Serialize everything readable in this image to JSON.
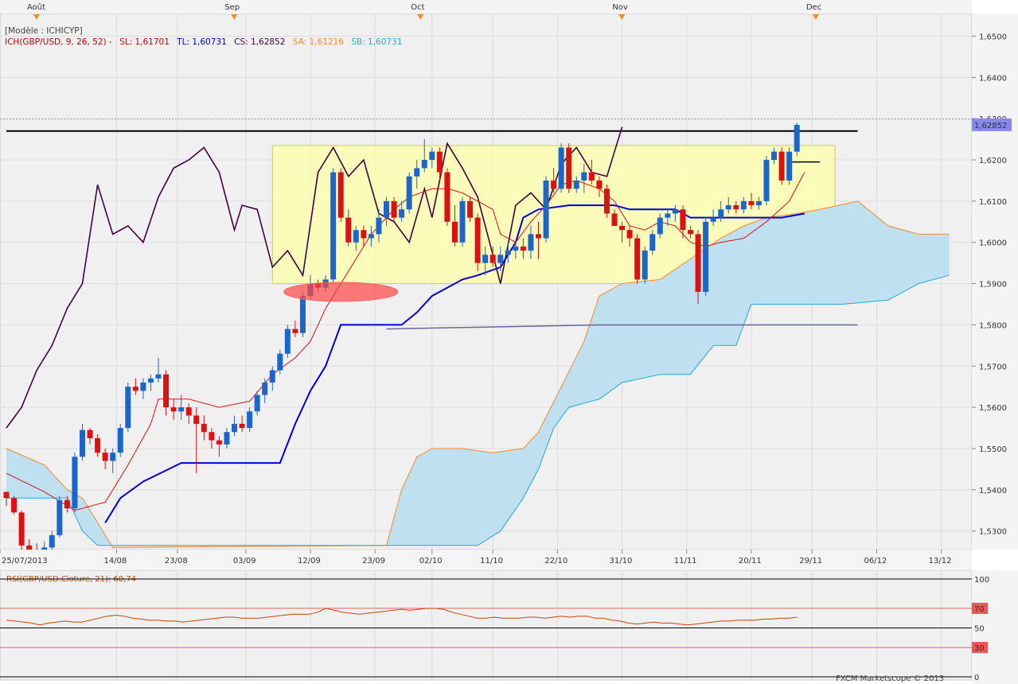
{
  "header": {
    "model_label": "[Modèle : ICHICYP]",
    "ich_label": "ICH(GBP/USD, 9, 26, 52) -",
    "sl": "SL: 1,61701",
    "tl": "TL: 1,60731",
    "cs": "CS: 1,62852",
    "sa": "SA: 1,61216",
    "sb": "SB: 1,60731"
  },
  "months": [
    "Août",
    "Sep",
    "Oct",
    "Nov",
    "Dec"
  ],
  "x_dates": [
    "25/07/2013",
    "14/08",
    "23/08",
    "03/09",
    "12/09",
    "23/09",
    "02/10",
    "11/10",
    "22/10",
    "31/10",
    "11/11",
    "20/11",
    "29/11",
    "06/12",
    "13/12"
  ],
  "price_axis": [
    "1,6500",
    "1,6400",
    "1,6300",
    "1,6200",
    "1,6100",
    "1,6000",
    "1,5900",
    "1,5800",
    "1,5700",
    "1,5600",
    "1,5500",
    "1,5400",
    "1,5300"
  ],
  "current_price": "1,62852",
  "rsi": {
    "label": "RSI(GBP/USD.Cloture, 21): 60,74",
    "levels": [
      "100",
      "70",
      "50",
      "30",
      "0"
    ]
  },
  "footer": "FXCM Marketscope © 2013",
  "colors": {
    "up": "#1a66cc",
    "down": "#dd1111",
    "tenkan": "#dd1111",
    "kijun": "#0000dd",
    "chikou": "#440044",
    "senkou_a": "#ff8822",
    "senkou_b": "#22aadd",
    "cloud_bull": "#bfe0f0",
    "cloud_bear": "#f8dcc0"
  },
  "chart_data": {
    "type": "candlestick",
    "instrument": "GBP/USD",
    "ylim": [
      1.5255,
      1.6555
    ],
    "candles": [
      [
        1.5395,
        1.5395,
        1.536,
        1.538
      ],
      [
        1.538,
        1.5385,
        1.534,
        1.5345
      ],
      [
        1.5345,
        1.535,
        1.5255,
        1.5265
      ],
      [
        1.5265,
        1.528,
        1.524,
        1.5255
      ],
      [
        1.5255,
        1.527,
        1.5235,
        1.525
      ],
      [
        1.525,
        1.5275,
        1.5235,
        1.526
      ],
      [
        1.526,
        1.53,
        1.5255,
        1.529
      ],
      [
        1.529,
        1.5385,
        1.5285,
        1.5375
      ],
      [
        1.5375,
        1.5385,
        1.5345,
        1.5355
      ],
      [
        1.5355,
        1.549,
        1.5345,
        1.548
      ],
      [
        1.548,
        1.556,
        1.547,
        1.5545
      ],
      [
        1.5545,
        1.555,
        1.551,
        1.5525
      ],
      [
        1.5525,
        1.5535,
        1.548,
        1.549
      ],
      [
        1.549,
        1.55,
        1.545,
        1.547
      ],
      [
        1.547,
        1.55,
        1.544,
        1.549
      ],
      [
        1.549,
        1.556,
        1.548,
        1.555
      ],
      [
        1.555,
        1.566,
        1.554,
        1.565
      ],
      [
        1.565,
        1.567,
        1.563,
        1.564
      ],
      [
        1.564,
        1.567,
        1.562,
        1.566
      ],
      [
        1.566,
        1.568,
        1.564,
        1.567
      ],
      [
        1.567,
        1.572,
        1.566,
        1.568
      ],
      [
        1.568,
        1.569,
        1.558,
        1.56
      ],
      [
        1.56,
        1.562,
        1.557,
        1.559
      ],
      [
        1.559,
        1.563,
        1.557,
        1.56
      ],
      [
        1.56,
        1.561,
        1.556,
        1.558
      ],
      [
        1.558,
        1.56,
        1.544,
        1.556
      ],
      [
        1.556,
        1.558,
        1.552,
        1.554
      ],
      [
        1.554,
        1.555,
        1.55,
        1.552
      ],
      [
        1.552,
        1.553,
        1.548,
        1.551
      ],
      [
        1.551,
        1.555,
        1.55,
        1.554
      ],
      [
        1.554,
        1.558,
        1.553,
        1.556
      ],
      [
        1.556,
        1.558,
        1.554,
        1.555
      ],
      [
        1.555,
        1.56,
        1.554,
        1.559
      ],
      [
        1.559,
        1.564,
        1.558,
        1.563
      ],
      [
        1.563,
        1.567,
        1.561,
        1.566
      ],
      [
        1.566,
        1.57,
        1.564,
        1.569
      ],
      [
        1.569,
        1.574,
        1.568,
        1.573
      ],
      [
        1.573,
        1.58,
        1.572,
        1.579
      ],
      [
        1.579,
        1.581,
        1.577,
        1.578
      ],
      [
        1.578,
        1.588,
        1.577,
        1.587
      ],
      [
        1.587,
        1.592,
        1.586,
        1.59
      ],
      [
        1.59,
        1.591,
        1.588,
        1.589
      ],
      [
        1.589,
        1.592,
        1.588,
        1.591
      ],
      [
        1.591,
        1.618,
        1.59,
        1.617
      ],
      [
        1.617,
        1.618,
        1.605,
        1.606
      ],
      [
        1.606,
        1.608,
        1.599,
        1.6
      ],
      [
        1.6,
        1.604,
        1.598,
        1.603
      ],
      [
        1.603,
        1.604,
        1.599,
        1.601
      ],
      [
        1.601,
        1.604,
        1.599,
        1.602
      ],
      [
        1.602,
        1.608,
        1.6,
        1.606
      ],
      [
        1.606,
        1.611,
        1.604,
        1.61
      ],
      [
        1.61,
        1.611,
        1.605,
        1.606
      ],
      [
        1.606,
        1.61,
        1.605,
        1.608
      ],
      [
        1.608,
        1.617,
        1.607,
        1.616
      ],
      [
        1.616,
        1.62,
        1.613,
        1.618
      ],
      [
        1.618,
        1.625,
        1.617,
        1.62
      ],
      [
        1.62,
        1.623,
        1.618,
        1.622
      ],
      [
        1.622,
        1.623,
        1.615,
        1.617
      ],
      [
        1.617,
        1.618,
        1.604,
        1.605
      ],
      [
        1.605,
        1.609,
        1.599,
        1.6
      ],
      [
        1.6,
        1.611,
        1.599,
        1.61
      ],
      [
        1.61,
        1.611,
        1.605,
        1.606
      ],
      [
        1.606,
        1.607,
        1.593,
        1.595
      ],
      [
        1.595,
        1.599,
        1.592,
        1.597
      ],
      [
        1.597,
        1.599,
        1.594,
        1.595
      ],
      [
        1.595,
        1.599,
        1.593,
        1.597
      ],
      [
        1.597,
        1.6,
        1.595,
        1.598
      ],
      [
        1.598,
        1.6,
        1.596,
        1.599
      ],
      [
        1.599,
        1.601,
        1.596,
        1.598
      ],
      [
        1.598,
        1.604,
        1.596,
        1.602
      ],
      [
        1.602,
        1.605,
        1.596,
        1.601
      ],
      [
        1.601,
        1.616,
        1.6,
        1.615
      ],
      [
        1.615,
        1.618,
        1.612,
        1.613
      ],
      [
        1.613,
        1.624,
        1.612,
        1.623
      ],
      [
        1.623,
        1.624,
        1.612,
        1.613
      ],
      [
        1.613,
        1.616,
        1.612,
        1.615
      ],
      [
        1.615,
        1.619,
        1.612,
        1.617
      ],
      [
        1.617,
        1.62,
        1.614,
        1.615
      ],
      [
        1.615,
        1.616,
        1.611,
        1.613
      ],
      [
        1.613,
        1.614,
        1.606,
        1.607
      ],
      [
        1.607,
        1.608,
        1.604,
        1.604
      ],
      [
        1.604,
        1.605,
        1.6,
        1.603
      ],
      [
        1.603,
        1.604,
        1.599,
        1.601
      ],
      [
        1.601,
        1.602,
        1.59,
        1.591
      ],
      [
        1.591,
        1.599,
        1.59,
        1.598
      ],
      [
        1.598,
        1.603,
        1.597,
        1.602
      ],
      [
        1.602,
        1.607,
        1.601,
        1.606
      ],
      [
        1.606,
        1.608,
        1.604,
        1.607
      ],
      [
        1.607,
        1.609,
        1.605,
        1.608
      ],
      [
        1.608,
        1.609,
        1.601,
        1.603
      ],
      [
        1.603,
        1.604,
        1.601,
        1.602
      ],
      [
        1.602,
        1.603,
        1.585,
        1.588
      ],
      [
        1.588,
        1.606,
        1.587,
        1.605
      ],
      [
        1.605,
        1.608,
        1.604,
        1.606
      ],
      [
        1.606,
        1.61,
        1.605,
        1.608
      ],
      [
        1.608,
        1.611,
        1.607,
        1.609
      ],
      [
        1.609,
        1.61,
        1.607,
        1.608
      ],
      [
        1.608,
        1.611,
        1.607,
        1.61
      ],
      [
        1.61,
        1.612,
        1.608,
        1.609
      ],
      [
        1.609,
        1.611,
        1.608,
        1.61
      ],
      [
        1.61,
        1.621,
        1.609,
        1.62
      ],
      [
        1.62,
        1.623,
        1.619,
        1.622
      ],
      [
        1.622,
        1.623,
        1.614,
        1.615
      ],
      [
        1.615,
        1.623,
        1.614,
        1.622
      ],
      [
        1.622,
        1.629,
        1.621,
        1.6285
      ]
    ],
    "tenkan": [
      [
        0,
        1.544
      ],
      [
        5,
        1.5395
      ],
      [
        9,
        1.535
      ],
      [
        13,
        1.537
      ],
      [
        16,
        1.546
      ],
      [
        19,
        1.556
      ],
      [
        20,
        1.562
      ],
      [
        24,
        1.562
      ],
      [
        28,
        1.56
      ],
      [
        32,
        1.5615
      ],
      [
        35,
        1.568
      ],
      [
        38,
        1.572
      ],
      [
        40,
        1.576
      ],
      [
        42,
        1.584
      ],
      [
        44,
        1.59
      ],
      [
        46,
        1.596
      ],
      [
        48,
        1.602
      ],
      [
        51,
        1.608
      ],
      [
        53,
        1.611
      ],
      [
        56,
        1.613
      ],
      [
        58,
        1.613
      ],
      [
        60,
        1.612
      ],
      [
        62,
        1.61
      ],
      [
        64,
        1.608
      ],
      [
        65,
        1.602
      ],
      [
        67,
        1.6
      ],
      [
        69,
        1.605
      ],
      [
        71,
        1.609
      ],
      [
        73,
        1.614
      ],
      [
        75,
        1.615
      ],
      [
        78,
        1.613
      ],
      [
        80,
        1.61
      ],
      [
        82,
        1.604
      ],
      [
        84,
        1.603
      ],
      [
        86,
        1.605
      ],
      [
        88,
        1.604
      ],
      [
        90,
        1.6
      ],
      [
        92,
        1.599
      ],
      [
        94,
        1.6
      ],
      [
        97,
        1.601
      ],
      [
        100,
        1.605
      ],
      [
        103,
        1.61
      ],
      [
        105,
        1.617
      ]
    ],
    "kijun": [
      [
        13,
        1.532
      ],
      [
        15,
        1.538
      ],
      [
        18,
        1.542
      ],
      [
        23,
        1.5465
      ],
      [
        30,
        1.5465
      ],
      [
        36,
        1.5465
      ],
      [
        38,
        1.556
      ],
      [
        40,
        1.564
      ],
      [
        42,
        1.57
      ],
      [
        44,
        1.58
      ],
      [
        46,
        1.58
      ],
      [
        50,
        1.58
      ],
      [
        52,
        1.58
      ],
      [
        54,
        1.583
      ],
      [
        56,
        1.587
      ],
      [
        58,
        1.589
      ],
      [
        60,
        1.591
      ],
      [
        62,
        1.592
      ],
      [
        65,
        1.594
      ],
      [
        67,
        1.6
      ],
      [
        68,
        1.606
      ],
      [
        70,
        1.608
      ],
      [
        74,
        1.609
      ],
      [
        78,
        1.609
      ],
      [
        80,
        1.609
      ],
      [
        82,
        1.608
      ],
      [
        88,
        1.608
      ],
      [
        90,
        1.606
      ],
      [
        94,
        1.606
      ],
      [
        102,
        1.606
      ],
      [
        105,
        1.607
      ]
    ],
    "chikou": [
      [
        0,
        1.555
      ],
      [
        2,
        1.56
      ],
      [
        4,
        1.569
      ],
      [
        6,
        1.575
      ],
      [
        8,
        1.584
      ],
      [
        10,
        1.59
      ],
      [
        12,
        1.614
      ],
      [
        14,
        1.602
      ],
      [
        16,
        1.604
      ],
      [
        18,
        1.6
      ],
      [
        20,
        1.611
      ],
      [
        22,
        1.618
      ],
      [
        24,
        1.62
      ],
      [
        26,
        1.623
      ],
      [
        28,
        1.617
      ],
      [
        30,
        1.603
      ],
      [
        31,
        1.609
      ],
      [
        33,
        1.608
      ],
      [
        35,
        1.594
      ],
      [
        37,
        1.598
      ],
      [
        39,
        1.592
      ],
      [
        41,
        1.617
      ],
      [
        43,
        1.623
      ],
      [
        45,
        1.616
      ],
      [
        47,
        1.62
      ],
      [
        49,
        1.607
      ],
      [
        51,
        1.605
      ],
      [
        53,
        1.6
      ],
      [
        55,
        1.613
      ],
      [
        56,
        1.606
      ],
      [
        58,
        1.624
      ],
      [
        60,
        1.618
      ],
      [
        62,
        1.611
      ],
      [
        65,
        1.59
      ],
      [
        67,
        1.609
      ],
      [
        69,
        1.612
      ],
      [
        71,
        1.608
      ],
      [
        73,
        1.619
      ],
      [
        75,
        1.623
      ],
      [
        77,
        1.617
      ],
      [
        79,
        1.616
      ],
      [
        81,
        1.628
      ]
    ],
    "senkou_a": [
      [
        0,
        1.55
      ],
      [
        5,
        1.546
      ],
      [
        8,
        1.54
      ],
      [
        10,
        1.538
      ],
      [
        12,
        1.532
      ],
      [
        14,
        1.526
      ],
      [
        50,
        1.5265
      ],
      [
        52,
        1.54
      ],
      [
        54,
        1.548
      ],
      [
        56,
        1.55
      ],
      [
        60,
        1.55
      ],
      [
        64,
        1.549
      ],
      [
        68,
        1.55
      ],
      [
        70,
        1.554
      ],
      [
        73,
        1.565
      ],
      [
        76,
        1.576
      ],
      [
        78,
        1.587
      ],
      [
        81,
        1.59
      ],
      [
        86,
        1.591
      ],
      [
        90,
        1.596
      ],
      [
        94,
        1.601
      ],
      [
        97,
        1.604
      ],
      [
        100,
        1.606
      ],
      [
        104,
        1.607
      ],
      [
        107,
        1.608
      ],
      [
        112,
        1.61
      ],
      [
        116,
        1.604
      ],
      [
        120,
        1.602
      ],
      [
        124,
        1.602
      ]
    ],
    "senkou_b": [
      [
        0,
        1.538
      ],
      [
        8,
        1.538
      ],
      [
        10,
        1.53
      ],
      [
        12,
        1.5265
      ],
      [
        50,
        1.5265
      ],
      [
        62,
        1.5265
      ],
      [
        65,
        1.53
      ],
      [
        68,
        1.538
      ],
      [
        70,
        1.545
      ],
      [
        72,
        1.555
      ],
      [
        74,
        1.56
      ],
      [
        78,
        1.562
      ],
      [
        81,
        1.566
      ],
      [
        86,
        1.568
      ],
      [
        90,
        1.568
      ],
      [
        93,
        1.575
      ],
      [
        96,
        1.575
      ],
      [
        98,
        1.585
      ],
      [
        110,
        1.585
      ],
      [
        116,
        1.586
      ],
      [
        120,
        1.59
      ],
      [
        124,
        1.592
      ]
    ],
    "trendlines": [
      {
        "x": [
          0,
          45,
          105,
          112
        ],
        "y": [
          1.627,
          1.627,
          1.627,
          1.627
        ],
        "color": "#000000"
      },
      {
        "x": [
          50,
          78,
          112
        ],
        "y": [
          1.579,
          1.58,
          1.58
        ],
        "color": "#666699"
      },
      {
        "x": [
          103,
          107
        ],
        "y": [
          1.6195,
          1.6195
        ],
        "color": "#000000"
      }
    ],
    "rectangle": {
      "x0": 35,
      "x1": 109,
      "y0": 1.59,
      "y1": 1.6235
    },
    "ellipse": {
      "cx": 44,
      "cy": 1.588,
      "rx_bars": 7.5,
      "ry": 0.0023
    },
    "rsi_series": [
      58,
      57,
      56,
      55,
      53,
      55,
      56,
      57,
      56,
      56,
      58,
      60,
      62,
      63,
      62,
      60,
      59,
      58,
      58,
      57,
      57,
      56,
      57,
      58,
      59,
      60,
      61,
      61,
      60,
      60,
      60,
      61,
      62,
      63,
      64,
      64,
      64,
      66,
      70,
      68,
      66,
      65,
      64,
      65,
      66,
      67,
      68,
      69,
      68,
      69,
      70,
      70,
      69,
      66,
      64,
      62,
      60,
      60,
      61,
      60,
      60,
      60,
      61,
      61,
      60,
      61,
      62,
      61,
      62,
      62,
      60,
      60,
      58,
      57,
      55,
      54,
      55,
      56,
      55,
      55,
      54,
      53,
      54,
      55,
      56,
      57,
      57,
      58,
      58,
      58,
      59,
      59,
      60,
      60,
      61
    ]
  }
}
